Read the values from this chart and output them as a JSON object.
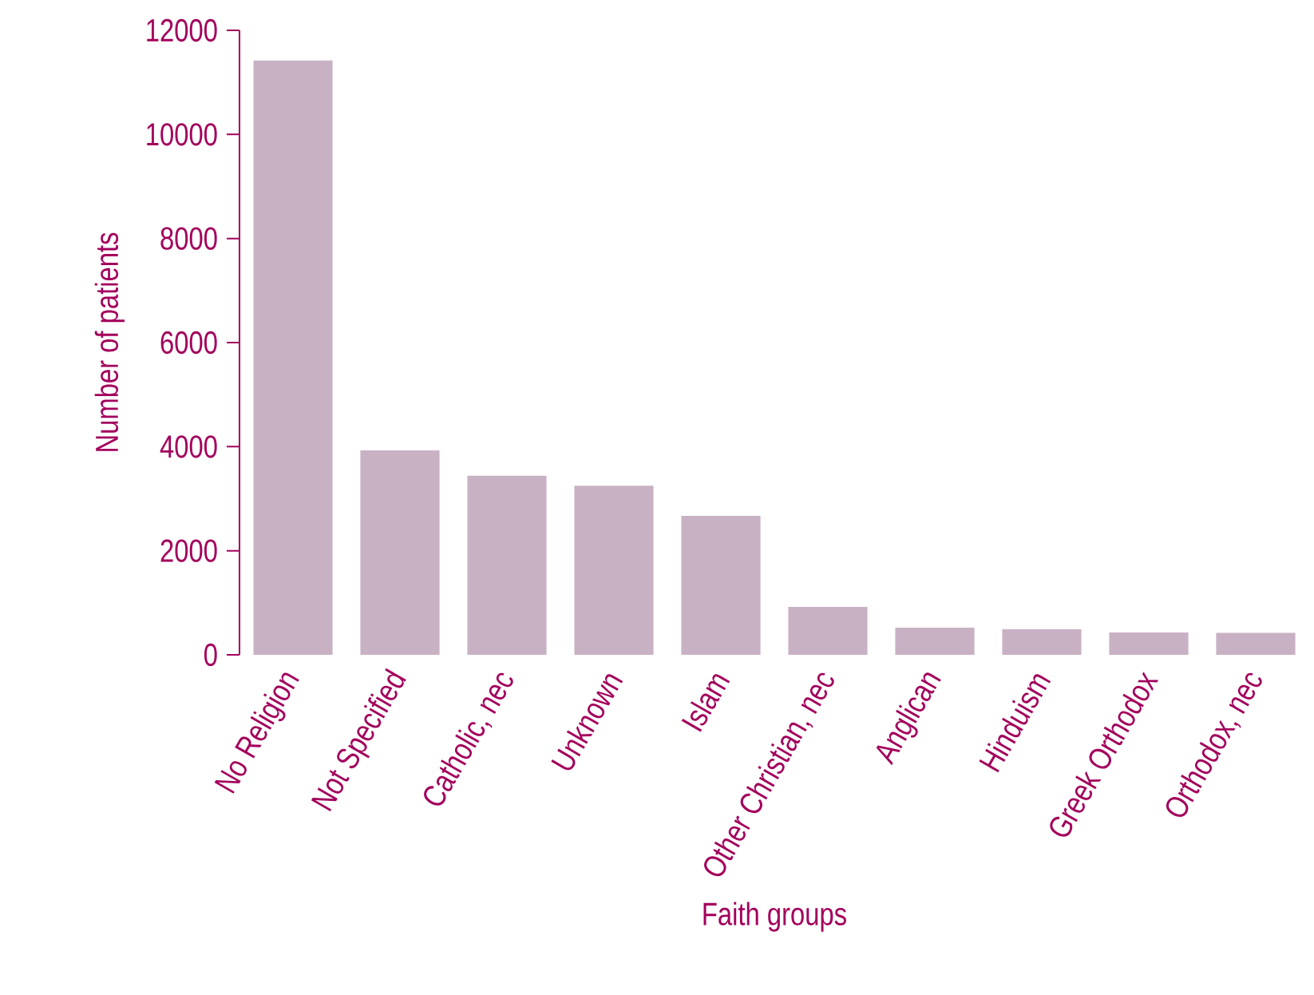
{
  "chart_data": {
    "type": "bar",
    "xlabel": "Faith groups",
    "ylabel": "Number of patients",
    "categories": [
      "No Religion",
      "Not Specified",
      "Catholic, nec",
      "Unknown",
      "Islam",
      "Other Christian, nec",
      "Anglican",
      "Hinduism",
      "Greek Orthodox",
      "Orthodox, nec"
    ],
    "values": [
      11420,
      3930,
      3440,
      3250,
      2670,
      920,
      520,
      490,
      430,
      420
    ],
    "color": "#c9b1c4",
    "ylim": [
      0,
      12000
    ],
    "yticks": [
      0,
      2000,
      4000,
      6000,
      8000,
      10000,
      12000
    ],
    "grid": false
  }
}
